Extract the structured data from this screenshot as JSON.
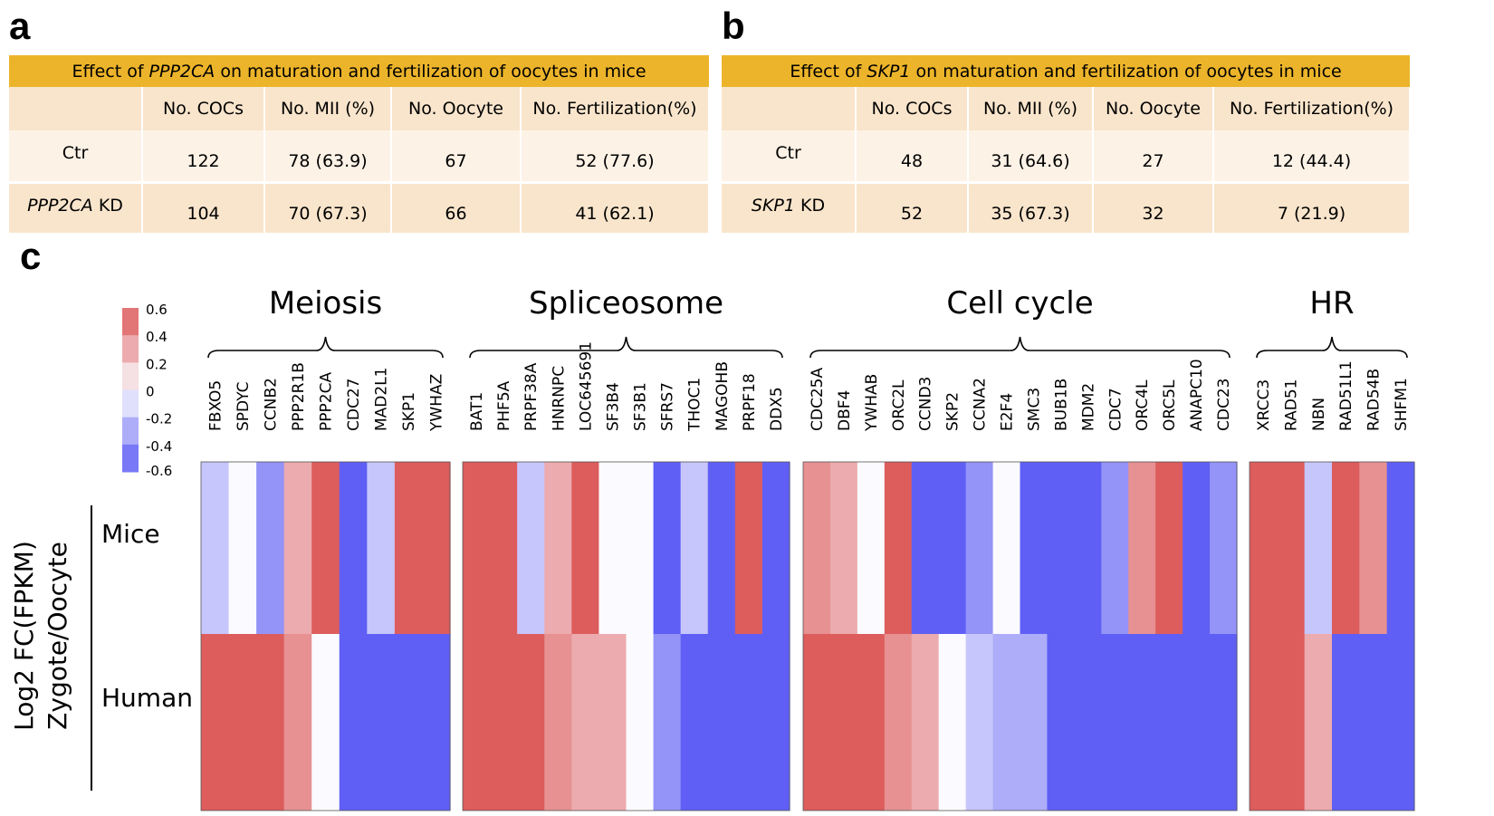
{
  "panel_a": {
    "letter": "a",
    "title_prefix": "Effect of ",
    "title_gene": "PPP2CA",
    "title_suffix": " on maturation and fertilization of oocytes in mice",
    "columns": [
      "No. COCs",
      "No. MII (%)",
      "No. Oocyte",
      "No. Fertilization(%)"
    ],
    "rows": [
      {
        "label": "Ctr",
        "label_gene": "",
        "values": [
          "122",
          "78 (63.9)",
          "67",
          "52 (77.6)"
        ]
      },
      {
        "label": " KD",
        "label_gene": "PPP2CA",
        "values": [
          "104",
          "70 (67.3)",
          "66",
          "41 (62.1)"
        ]
      }
    ]
  },
  "panel_b": {
    "letter": "b",
    "title_prefix": "Effect of ",
    "title_gene": "SKP1",
    "title_suffix": " on maturation and fertilization of oocytes in mice",
    "columns": [
      "No. COCs",
      "No. MII (%)",
      "No. Oocyte",
      "No. Fertilization(%)"
    ],
    "rows": [
      {
        "label": "Ctr",
        "label_gene": "",
        "values": [
          "48",
          "31 (64.6)",
          "27",
          "12 (44.4)"
        ]
      },
      {
        "label": " KD",
        "label_gene": "SKP1",
        "values": [
          "52",
          "35 (67.3)",
          "32",
          "7 (21.9)"
        ]
      }
    ]
  },
  "panel_c": {
    "letter": "c",
    "ylabel_lines": [
      "Log2 FC(FPKM)",
      "Zygote/Oocyte"
    ],
    "colors": {
      "high": "#dd5c5c",
      "mid": "#fafaff",
      "low": "#5f5ff5"
    }
  },
  "chart_data": {
    "type": "heatmap",
    "rows": [
      "Mice",
      "Human"
    ],
    "colorbar": {
      "ticks": [
        "0.6",
        "0.4",
        "0.2",
        "0",
        "-0.2",
        "-0.4",
        "-0.6"
      ],
      "range": [
        -0.6,
        0.6
      ]
    },
    "groups": [
      {
        "name": "Meiosis",
        "genes": [
          "FBXO5",
          "SPDYC",
          "CCNB2",
          "PPP2R1B",
          "PPP2CA",
          "CDC27",
          "MAD2L1",
          "SKP1",
          "YWHAZ"
        ],
        "mice": [
          -0.2,
          0,
          -0.4,
          0.3,
          0.6,
          -0.6,
          -0.2,
          0.6,
          0.6
        ],
        "human": [
          0.6,
          0.6,
          0.6,
          0.4,
          0,
          -0.6,
          -0.6,
          -0.6,
          -0.6
        ]
      },
      {
        "name": "Spliceosome",
        "genes": [
          "BAT1",
          "PHF5A",
          "PRPF38A",
          "HNRNPC",
          "LOC645691",
          "SF3B4",
          "SF3B1",
          "SFRS7",
          "THOC1",
          "MAGOHB",
          "PRPF18",
          "DDX5"
        ],
        "mice": [
          0.6,
          0.6,
          -0.2,
          0.3,
          0.6,
          0,
          0,
          -0.6,
          -0.2,
          -0.6,
          0.6,
          -0.6
        ],
        "human": [
          0.6,
          0.6,
          0.6,
          0.4,
          0.3,
          0.3,
          0,
          -0.4,
          -0.6,
          -0.6,
          -0.6,
          -0.6
        ]
      },
      {
        "name": "Cell cycle",
        "genes": [
          "CDC25A",
          "DBF4",
          "YWHAB",
          "ORC2L",
          "CCND3",
          "SKP2",
          "CCNA2",
          "E2F4",
          "SMC3",
          "BUB1B",
          "MDM2",
          "CDC7",
          "ORC4L",
          "ORC5L",
          "ANAPC10",
          "CDC23"
        ],
        "mice": [
          0.4,
          0.3,
          0,
          0.6,
          -0.6,
          -0.6,
          -0.4,
          0,
          -0.6,
          -0.6,
          -0.6,
          -0.4,
          0.4,
          0.6,
          -0.6,
          -0.4
        ],
        "human": [
          0.6,
          0.6,
          0.6,
          0.4,
          0.3,
          0,
          -0.2,
          -0.3,
          -0.3,
          -0.6,
          -0.6,
          -0.6,
          -0.6,
          -0.6,
          -0.6,
          -0.6
        ]
      },
      {
        "name": "HR",
        "genes": [
          "XRCC3",
          "RAD51",
          "NBN",
          "RAD51L1",
          "RAD54B",
          "SHFM1"
        ],
        "mice": [
          0.6,
          0.6,
          -0.2,
          0.6,
          0.4,
          -0.6
        ],
        "human": [
          0.6,
          0.6,
          0.3,
          -0.6,
          -0.6,
          -0.6
        ]
      }
    ]
  }
}
